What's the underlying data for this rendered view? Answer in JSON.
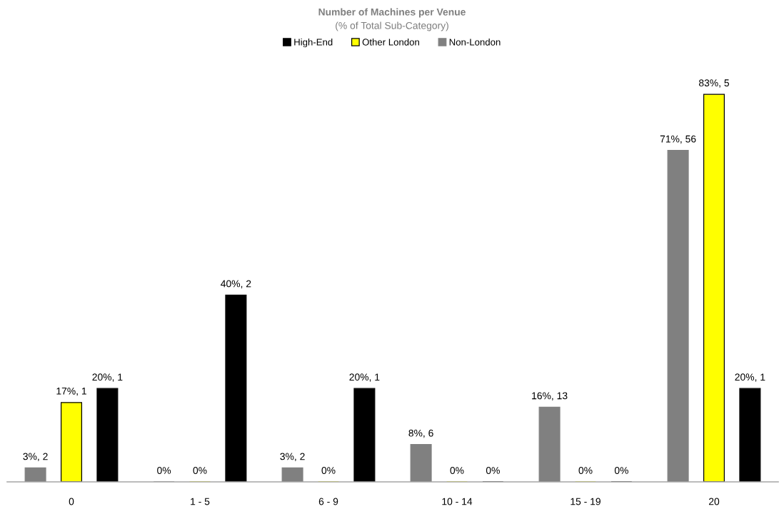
{
  "chart_data": {
    "type": "bar",
    "title": "Number of Machines per Venue",
    "subtitle": "(% of Total Sub-Category)",
    "legend": "top",
    "categories": [
      "0",
      "1 - 5",
      "6 - 9",
      "10 - 14",
      "15 - 19",
      "20"
    ],
    "series": [
      {
        "name": "Non-London",
        "color": "#808080",
        "values": [
          3,
          0,
          3,
          8,
          16,
          71
        ],
        "value_labels": [
          "3%, 2",
          "0%",
          "3%, 2",
          "8%, 6",
          "16%, 13",
          "71%, 56"
        ]
      },
      {
        "name": "Other London",
        "color": "#ffff00",
        "values": [
          17,
          0,
          0,
          0,
          0,
          83
        ],
        "value_labels": [
          "17%, 1",
          "0%",
          "0%",
          "0%",
          "0%",
          "83%, 5"
        ]
      },
      {
        "name": "High-End",
        "color": "#000000",
        "values": [
          20,
          40,
          20,
          0,
          0,
          20
        ],
        "value_labels": [
          "20%, 1",
          "40%, 2",
          "20%, 1",
          "0%",
          "0%",
          "20%, 1"
        ]
      }
    ]
  }
}
